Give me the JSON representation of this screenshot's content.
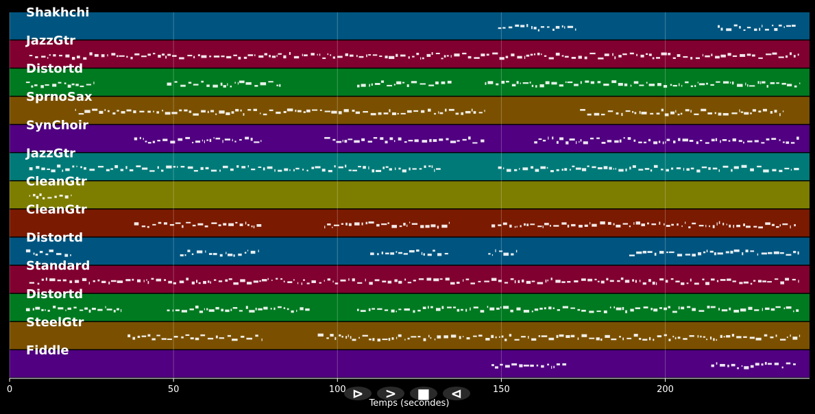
{
  "chart_data": {
    "type": "piano-roll",
    "title": "",
    "xlabel": "Temps (secondes)",
    "ylabel": "",
    "xlim": [
      0,
      244
    ],
    "xticks": [
      0,
      50,
      100,
      150,
      200
    ],
    "grid": true,
    "tracks": [
      {
        "name": "Shakhchi",
        "color": "#005580",
        "segments": [
          [
            149,
            173
          ],
          [
            216,
            240
          ]
        ]
      },
      {
        "name": "JazzGtr",
        "color": "#800030",
        "segments": [
          [
            6,
            241
          ]
        ]
      },
      {
        "name": "Distortd",
        "color": "#007a20",
        "segments": [
          [
            5,
            26
          ],
          [
            48,
            83
          ],
          [
            106,
            135
          ],
          [
            145,
            241
          ]
        ]
      },
      {
        "name": "SprnoSax",
        "color": "#7a5000",
        "segments": [
          [
            20,
            145
          ],
          [
            174,
            236
          ]
        ]
      },
      {
        "name": "SynChoir",
        "color": "#500080",
        "segments": [
          [
            38,
            77
          ],
          [
            96,
            145
          ],
          [
            160,
            241
          ]
        ]
      },
      {
        "name": "JazzGtr",
        "color": "#007a78",
        "segments": [
          [
            6,
            132
          ],
          [
            149,
            241
          ]
        ]
      },
      {
        "name": "CleanGtr",
        "color": "#7d7d00",
        "segments": [
          [
            6,
            19
          ]
        ]
      },
      {
        "name": "CleanGtr",
        "color": "#7a1a00",
        "segments": [
          [
            38,
            77
          ],
          [
            96,
            134
          ],
          [
            147,
            240
          ]
        ]
      },
      {
        "name": "Distortd",
        "color": "#005580",
        "segments": [
          [
            5,
            19
          ],
          [
            52,
            76
          ],
          [
            110,
            134
          ],
          [
            146,
            155
          ],
          [
            189,
            241
          ]
        ]
      },
      {
        "name": "Standard",
        "color": "#800030",
        "segments": [
          [
            6,
            241
          ]
        ]
      },
      {
        "name": "Distortd",
        "color": "#007a20",
        "segments": [
          [
            5,
            34
          ],
          [
            48,
            92
          ],
          [
            106,
            241
          ]
        ]
      },
      {
        "name": "SteelGtr",
        "color": "#7a5000",
        "segments": [
          [
            36,
            77
          ],
          [
            94,
            241
          ]
        ]
      },
      {
        "name": "Fiddle",
        "color": "#500080",
        "segments": [
          [
            147,
            170
          ],
          [
            214,
            240
          ]
        ]
      }
    ]
  },
  "controls": [
    {
      "name": "play-icon",
      "glyph": "⊳"
    },
    {
      "name": "forward-icon",
      "glyph": ">"
    },
    {
      "name": "stop-icon",
      "glyph": "■"
    },
    {
      "name": "back-icon",
      "glyph": "⊲"
    }
  ]
}
